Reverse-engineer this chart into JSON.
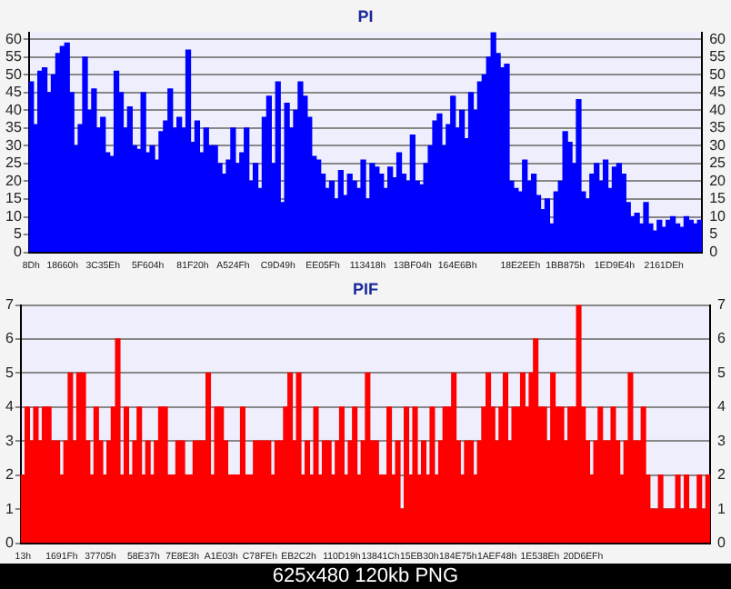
{
  "chart_data": [
    {
      "type": "bar",
      "title": "PI",
      "categories": [
        "8Dh",
        null,
        null,
        null,
        null,
        null,
        null,
        "18660h",
        null,
        null,
        null,
        null,
        null,
        null,
        null,
        null,
        "3C35Eh",
        null,
        null,
        null,
        null,
        null,
        null,
        null,
        null,
        null,
        "5F604h",
        null,
        null,
        null,
        null,
        null,
        null,
        null,
        null,
        null,
        "81F20h",
        null,
        null,
        null,
        null,
        null,
        null,
        null,
        null,
        "A524Fh",
        null,
        null,
        null,
        null,
        null,
        null,
        null,
        null,
        null,
        "C9D49h",
        null,
        null,
        null,
        null,
        null,
        null,
        null,
        null,
        null,
        "EE05Fh",
        null,
        null,
        null,
        null,
        null,
        null,
        null,
        null,
        null,
        "113418h",
        null,
        null,
        null,
        null,
        null,
        null,
        null,
        null,
        null,
        "13BF04h",
        null,
        null,
        null,
        null,
        null,
        null,
        null,
        null,
        null,
        "164E6Bh",
        null,
        null,
        null,
        null,
        null,
        null,
        null,
        null,
        null,
        null,
        null,
        null,
        null,
        "18E2EEh",
        null,
        null,
        null,
        null,
        null,
        null,
        null,
        null,
        null,
        "1BB875h",
        null,
        null,
        null,
        null,
        null,
        null,
        null,
        null,
        null,
        null,
        "1ED9E4h",
        null,
        null,
        null,
        null,
        null,
        null,
        null,
        null,
        null,
        null,
        "2161DEh",
        null,
        null,
        null,
        null,
        null,
        null,
        null,
        null
      ],
      "values": [
        48,
        36,
        51,
        52,
        45,
        50,
        56,
        58,
        59,
        45,
        30,
        36,
        55,
        40,
        46,
        35,
        38,
        28,
        27,
        51,
        45,
        35,
        41,
        30,
        29,
        45,
        28,
        30,
        26,
        34,
        37,
        46,
        35,
        38,
        35,
        57,
        31,
        37,
        28,
        35,
        30,
        30,
        25,
        22,
        26,
        35,
        25,
        28,
        35,
        20,
        25,
        18,
        38,
        44,
        25,
        48,
        14,
        42,
        35,
        40,
        48,
        44,
        38,
        27,
        26,
        22,
        18,
        20,
        15,
        23,
        16,
        22,
        20,
        18,
        26,
        15,
        25,
        24,
        22,
        18,
        24,
        21,
        28,
        22,
        20,
        33,
        20,
        19,
        25,
        30,
        37,
        39,
        30,
        36,
        44,
        35,
        40,
        32,
        45,
        40,
        48,
        50,
        55,
        62,
        56,
        52,
        53,
        20,
        18,
        17,
        26,
        20,
        22,
        16,
        12,
        15,
        8,
        17,
        20,
        34,
        31,
        25,
        43,
        17,
        15,
        22,
        25,
        20,
        26,
        18,
        24,
        25,
        22,
        14,
        10,
        11,
        8,
        14,
        8,
        6,
        9,
        7,
        9,
        10,
        8,
        7,
        10,
        9,
        8,
        9
      ],
      "color": "#0000ff",
      "ylim": [
        0,
        62
      ],
      "yticks": [
        0,
        5,
        10,
        15,
        20,
        25,
        30,
        35,
        40,
        45,
        50,
        55,
        60
      ],
      "y2lim": [
        0,
        62
      ],
      "y2ticks": [
        0,
        5,
        10,
        15,
        20,
        25,
        30,
        35,
        40,
        45,
        50,
        55,
        60
      ],
      "grid": "y"
    },
    {
      "type": "bar",
      "title": "PIF",
      "categories": [
        "13h",
        null,
        null,
        null,
        null,
        null,
        null,
        null,
        null,
        "1691Fh",
        null,
        null,
        null,
        null,
        null,
        null,
        null,
        null,
        "37705h",
        null,
        null,
        null,
        null,
        null,
        null,
        null,
        null,
        null,
        "58E37h",
        null,
        null,
        null,
        null,
        null,
        null,
        null,
        null,
        "7E8E3h",
        null,
        null,
        null,
        null,
        null,
        null,
        null,
        null,
        "A1E03h",
        null,
        null,
        null,
        null,
        null,
        null,
        null,
        null,
        "C78FEh",
        null,
        null,
        null,
        null,
        null,
        null,
        null,
        null,
        "EB2C2h",
        null,
        null,
        null,
        null,
        null,
        null,
        null,
        null,
        null,
        "110D19h",
        null,
        null,
        null,
        null,
        null,
        null,
        null,
        null,
        "13841Ch",
        null,
        null,
        null,
        null,
        null,
        null,
        null,
        null,
        "15EB30h",
        null,
        null,
        null,
        null,
        null,
        null,
        null,
        null,
        "184E75h",
        null,
        null,
        null,
        null,
        null,
        null,
        null,
        null,
        "1AEF48h",
        null,
        null,
        null,
        null,
        null,
        null,
        null,
        null,
        null,
        "1E538Eh",
        null,
        null,
        null,
        null,
        null,
        null,
        null,
        null,
        null,
        "20D6EFh",
        null,
        null,
        null,
        null,
        null,
        null,
        null,
        null,
        null,
        null,
        null,
        null,
        null,
        null,
        null,
        null,
        null,
        null,
        null,
        null,
        null,
        null,
        null,
        null,
        null,
        null,
        null,
        null,
        null
      ],
      "values": [
        2,
        4,
        3,
        4,
        3,
        4,
        4,
        3,
        3,
        2,
        3,
        5,
        3,
        5,
        5,
        3,
        2,
        4,
        3,
        2,
        3,
        4,
        6,
        2,
        4,
        2,
        3,
        4,
        2,
        3,
        2,
        3,
        4,
        4,
        2,
        2,
        3,
        3,
        2,
        2,
        3,
        3,
        3,
        5,
        2,
        4,
        4,
        3,
        2,
        2,
        2,
        4,
        2,
        2,
        3,
        3,
        3,
        3,
        2,
        3,
        3,
        4,
        5,
        3,
        5,
        2,
        3,
        2,
        4,
        2,
        3,
        3,
        2,
        3,
        4,
        2,
        3,
        4,
        2,
        3,
        5,
        3,
        3,
        2,
        2,
        4,
        2,
        3,
        1,
        4,
        2,
        4,
        2,
        3,
        2,
        4,
        2,
        3,
        4,
        4,
        5,
        3,
        2,
        3,
        3,
        2,
        3,
        4,
        5,
        4,
        3,
        4,
        5,
        3,
        4,
        4,
        5,
        4,
        5,
        6,
        4,
        4,
        3,
        5,
        4,
        4,
        3,
        4,
        4,
        7,
        4,
        3,
        2,
        3,
        4,
        3,
        3,
        4,
        3,
        2,
        3,
        5,
        3,
        3,
        4,
        2,
        1,
        1,
        2,
        1,
        1,
        1,
        2,
        1,
        2,
        1,
        1,
        2,
        1,
        2
      ],
      "color": "#ff0000",
      "ylim": [
        0,
        7
      ],
      "yticks": [
        0,
        1,
        2,
        3,
        4,
        5,
        6,
        7
      ],
      "y2lim": [
        0,
        7
      ],
      "y2ticks": [
        0,
        1,
        2,
        3,
        4,
        5,
        6,
        7
      ],
      "grid": "y",
      "annotations": [
        "625x480 120kb PNG"
      ]
    }
  ]
}
